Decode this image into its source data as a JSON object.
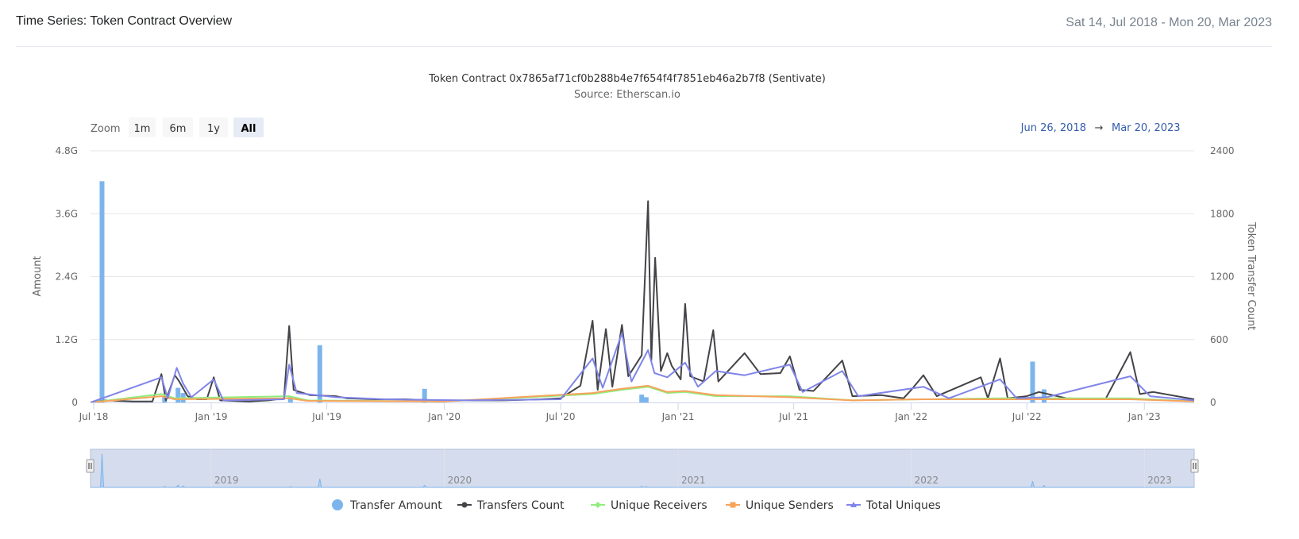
{
  "header": {
    "title": "Time Series: Token Contract Overview",
    "date_range": "Sat 14, Jul 2018 - Mon 20, Mar 2023"
  },
  "chart_data": {
    "type": "line",
    "title": "Token Contract 0x7865af71cf0b288b4e7f654f4f7851eb46a2b7f8 (Sentivate)",
    "subtitle": "Source: Etherscan.io",
    "zoom": {
      "label": "Zoom",
      "buttons": [
        "1m",
        "6m",
        "1y",
        "All"
      ],
      "active": "All"
    },
    "range_inputs": {
      "from": "Jun 26, 2018",
      "arrow": "→",
      "to": "Mar 20, 2023"
    },
    "x_axis": {
      "type": "datetime",
      "range": [
        "2018-06-26",
        "2023-03-20"
      ],
      "tick_labels": [
        {
          "date": "2018-07-01",
          "label": "Jul '18"
        },
        {
          "date": "2019-01-01",
          "label": "Jan '19"
        },
        {
          "date": "2019-07-01",
          "label": "Jul '19"
        },
        {
          "date": "2020-01-01",
          "label": "Jan '20"
        },
        {
          "date": "2020-07-01",
          "label": "Jul '20"
        },
        {
          "date": "2021-01-01",
          "label": "Jan '21"
        },
        {
          "date": "2021-07-01",
          "label": "Jul '21"
        },
        {
          "date": "2022-01-01",
          "label": "Jan '22"
        },
        {
          "date": "2022-07-01",
          "label": "Jul '22"
        },
        {
          "date": "2023-01-01",
          "label": "Jan '23"
        }
      ]
    },
    "y_axis_left": {
      "label": "Amount",
      "range": [
        0,
        4800000000
      ],
      "ticks": [
        {
          "value": 0,
          "label": "0"
        },
        {
          "value": 1200000000,
          "label": "1.2G"
        },
        {
          "value": 2400000000,
          "label": "2.4G"
        },
        {
          "value": 3600000000,
          "label": "3.6G"
        },
        {
          "value": 4800000000,
          "label": "4.8G"
        }
      ]
    },
    "y_axis_right": {
      "label": "Token Transfer Count",
      "range": [
        0,
        2400
      ],
      "ticks": [
        {
          "value": 0,
          "label": "0"
        },
        {
          "value": 600,
          "label": "600"
        },
        {
          "value": 1200,
          "label": "1200"
        },
        {
          "value": 1800,
          "label": "1800"
        },
        {
          "value": 2400,
          "label": "2400"
        }
      ]
    },
    "grid": true,
    "legend_position": "bottom",
    "series": [
      {
        "name": "Transfer Amount",
        "axis": "left",
        "kind": "column",
        "color": "#7cb5ec",
        "points": [
          [
            "2018-07-14",
            4220000000
          ],
          [
            "2018-10-20",
            120000000
          ],
          [
            "2018-11-10",
            280000000
          ],
          [
            "2018-11-18",
            180000000
          ],
          [
            "2019-05-05",
            100000000
          ],
          [
            "2019-06-20",
            1090000000
          ],
          [
            "2019-12-01",
            260000000
          ],
          [
            "2020-11-05",
            150000000
          ],
          [
            "2020-11-12",
            100000000
          ],
          [
            "2022-07-10",
            780000000
          ],
          [
            "2022-07-28",
            250000000
          ]
        ]
      },
      {
        "name": "Transfers Count",
        "axis": "right",
        "kind": "line",
        "color": "#434348",
        "points": [
          [
            "2018-06-26",
            0
          ],
          [
            "2018-07-20",
            20
          ],
          [
            "2018-09-01",
            10
          ],
          [
            "2018-10-01",
            10
          ],
          [
            "2018-10-15",
            270
          ],
          [
            "2018-10-22",
            20
          ],
          [
            "2018-11-05",
            260
          ],
          [
            "2018-11-12",
            200
          ],
          [
            "2018-11-25",
            60
          ],
          [
            "2018-12-10",
            30
          ],
          [
            "2018-12-25",
            30
          ],
          [
            "2019-01-05",
            240
          ],
          [
            "2019-01-15",
            20
          ],
          [
            "2019-03-01",
            10
          ],
          [
            "2019-04-01",
            20
          ],
          [
            "2019-04-25",
            40
          ],
          [
            "2019-05-03",
            730
          ],
          [
            "2019-05-10",
            120
          ],
          [
            "2019-05-20",
            100
          ],
          [
            "2019-06-05",
            70
          ],
          [
            "2019-07-15",
            60
          ],
          [
            "2019-08-01",
            40
          ],
          [
            "2019-09-15",
            30
          ],
          [
            "2019-11-01",
            30
          ],
          [
            "2019-12-15",
            20
          ],
          [
            "2020-02-01",
            20
          ],
          [
            "2020-04-01",
            20
          ],
          [
            "2020-06-01",
            30
          ],
          [
            "2020-07-01",
            40
          ],
          [
            "2020-08-01",
            160
          ],
          [
            "2020-08-20",
            780
          ],
          [
            "2020-08-28",
            120
          ],
          [
            "2020-09-10",
            700
          ],
          [
            "2020-09-20",
            150
          ],
          [
            "2020-10-05",
            740
          ],
          [
            "2020-10-15",
            250
          ],
          [
            "2020-11-05",
            450
          ],
          [
            "2020-11-15",
            1920
          ],
          [
            "2020-11-20",
            400
          ],
          [
            "2020-11-26",
            1380
          ],
          [
            "2020-12-05",
            300
          ],
          [
            "2020-12-15",
            470
          ],
          [
            "2020-12-22",
            350
          ],
          [
            "2021-01-05",
            220
          ],
          [
            "2021-01-12",
            940
          ],
          [
            "2021-01-20",
            250
          ],
          [
            "2021-02-10",
            200
          ],
          [
            "2021-02-25",
            690
          ],
          [
            "2021-03-05",
            200
          ],
          [
            "2021-04-15",
            470
          ],
          [
            "2021-05-10",
            270
          ],
          [
            "2021-06-10",
            280
          ],
          [
            "2021-06-25",
            440
          ],
          [
            "2021-07-10",
            120
          ],
          [
            "2021-08-01",
            110
          ],
          [
            "2021-09-15",
            400
          ],
          [
            "2021-10-01",
            60
          ],
          [
            "2021-11-15",
            70
          ],
          [
            "2021-12-20",
            40
          ],
          [
            "2022-01-01",
            120
          ],
          [
            "2022-01-20",
            260
          ],
          [
            "2022-02-10",
            60
          ],
          [
            "2022-04-20",
            240
          ],
          [
            "2022-05-01",
            40
          ],
          [
            "2022-05-20",
            420
          ],
          [
            "2022-06-01",
            40
          ],
          [
            "2022-07-01",
            60
          ],
          [
            "2022-07-20",
            100
          ],
          [
            "2022-09-01",
            40
          ],
          [
            "2022-11-01",
            30
          ],
          [
            "2022-12-10",
            480
          ],
          [
            "2022-12-25",
            80
          ],
          [
            "2023-01-15",
            100
          ],
          [
            "2023-03-20",
            30
          ]
        ]
      },
      {
        "name": "Unique Receivers",
        "axis": "right",
        "kind": "line",
        "color": "#90ed7d",
        "points": [
          [
            "2018-06-26",
            0
          ],
          [
            "2018-10-15",
            80
          ],
          [
            "2018-11-05",
            40
          ],
          [
            "2019-05-03",
            60
          ],
          [
            "2019-06-01",
            20
          ],
          [
            "2020-01-01",
            10
          ],
          [
            "2020-08-20",
            80
          ],
          [
            "2020-10-05",
            120
          ],
          [
            "2020-11-15",
            150
          ],
          [
            "2020-12-15",
            90
          ],
          [
            "2021-01-12",
            100
          ],
          [
            "2021-03-01",
            60
          ],
          [
            "2021-06-25",
            60
          ],
          [
            "2021-10-01",
            20
          ],
          [
            "2022-01-20",
            30
          ],
          [
            "2022-05-20",
            40
          ],
          [
            "2022-12-10",
            40
          ],
          [
            "2023-03-20",
            10
          ]
        ]
      },
      {
        "name": "Unique Senders",
        "axis": "right",
        "kind": "line",
        "color": "#f7a35c",
        "points": [
          [
            "2018-06-26",
            0
          ],
          [
            "2018-10-15",
            60
          ],
          [
            "2018-11-05",
            30
          ],
          [
            "2019-05-03",
            40
          ],
          [
            "2019-06-01",
            15
          ],
          [
            "2020-01-01",
            10
          ],
          [
            "2020-08-20",
            90
          ],
          [
            "2020-09-10",
            110
          ],
          [
            "2020-10-05",
            130
          ],
          [
            "2020-11-15",
            160
          ],
          [
            "2020-12-15",
            100
          ],
          [
            "2021-01-12",
            110
          ],
          [
            "2021-03-01",
            70
          ],
          [
            "2021-06-25",
            50
          ],
          [
            "2021-10-01",
            20
          ],
          [
            "2022-01-20",
            30
          ],
          [
            "2022-05-20",
            30
          ],
          [
            "2022-12-10",
            30
          ],
          [
            "2023-03-20",
            10
          ]
        ]
      },
      {
        "name": "Total Uniques",
        "axis": "right",
        "kind": "line",
        "color": "#8085e9",
        "points": [
          [
            "2018-06-26",
            0
          ],
          [
            "2018-10-15",
            240
          ],
          [
            "2018-10-25",
            40
          ],
          [
            "2018-11-08",
            330
          ],
          [
            "2018-11-18",
            180
          ],
          [
            "2018-12-01",
            50
          ],
          [
            "2019-01-05",
            220
          ],
          [
            "2019-01-20",
            20
          ],
          [
            "2019-04-25",
            30
          ],
          [
            "2019-05-03",
            360
          ],
          [
            "2019-05-15",
            90
          ],
          [
            "2019-07-15",
            50
          ],
          [
            "2019-10-01",
            30
          ],
          [
            "2020-02-01",
            20
          ],
          [
            "2020-07-01",
            30
          ],
          [
            "2020-08-20",
            420
          ],
          [
            "2020-09-05",
            140
          ],
          [
            "2020-10-05",
            660
          ],
          [
            "2020-10-20",
            200
          ],
          [
            "2020-11-15",
            500
          ],
          [
            "2020-11-25",
            280
          ],
          [
            "2020-12-15",
            240
          ],
          [
            "2021-01-12",
            380
          ],
          [
            "2021-02-01",
            150
          ],
          [
            "2021-03-01",
            300
          ],
          [
            "2021-04-15",
            260
          ],
          [
            "2021-06-25",
            360
          ],
          [
            "2021-07-15",
            100
          ],
          [
            "2021-09-15",
            300
          ],
          [
            "2021-10-10",
            60
          ],
          [
            "2022-01-20",
            150
          ],
          [
            "2022-03-01",
            40
          ],
          [
            "2022-05-20",
            220
          ],
          [
            "2022-06-15",
            40
          ],
          [
            "2022-08-01",
            50
          ],
          [
            "2022-12-10",
            250
          ],
          [
            "2023-01-10",
            60
          ],
          [
            "2023-03-20",
            20
          ]
        ]
      }
    ],
    "navigator": {
      "labels": [
        "2019",
        "2020",
        "2021",
        "2022",
        "2023"
      ]
    },
    "legend": [
      {
        "name": "Transfer Amount",
        "symbol": "circle",
        "color": "#7cb5ec"
      },
      {
        "name": "Transfers Count",
        "symbol": "circle",
        "color": "#434348"
      },
      {
        "name": "Unique Receivers",
        "symbol": "diamond",
        "color": "#90ed7d"
      },
      {
        "name": "Unique Senders",
        "symbol": "square",
        "color": "#f7a35c"
      },
      {
        "name": "Total Uniques",
        "symbol": "triangle",
        "color": "#8085e9"
      }
    ]
  }
}
